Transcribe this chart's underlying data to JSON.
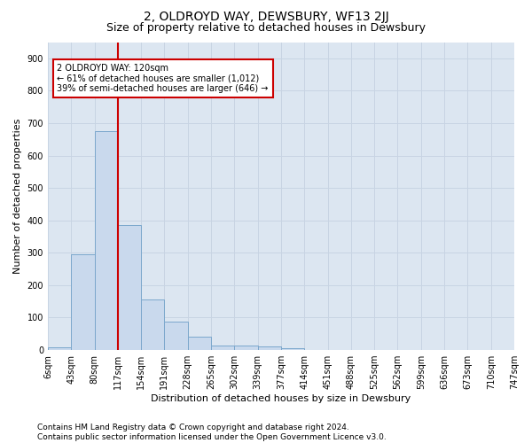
{
  "title": "2, OLDROYD WAY, DEWSBURY, WF13 2JJ",
  "subtitle": "Size of property relative to detached houses in Dewsbury",
  "xlabel": "Distribution of detached houses by size in Dewsbury",
  "ylabel": "Number of detached properties",
  "footer_line1": "Contains HM Land Registry data © Crown copyright and database right 2024.",
  "footer_line2": "Contains public sector information licensed under the Open Government Licence v3.0.",
  "bar_values": [
    8,
    295,
    675,
    385,
    155,
    87,
    42,
    14,
    13,
    10,
    7,
    0,
    0,
    0,
    0,
    0,
    0,
    0,
    0,
    0
  ],
  "bar_labels": [
    "6sqm",
    "43sqm",
    "80sqm",
    "117sqm",
    "154sqm",
    "191sqm",
    "228sqm",
    "265sqm",
    "302sqm",
    "339sqm",
    "377sqm",
    "414sqm",
    "451sqm",
    "488sqm",
    "525sqm",
    "562sqm",
    "599sqm",
    "636sqm",
    "673sqm",
    "710sqm",
    "747sqm"
  ],
  "bar_color": "#c9d9ed",
  "bar_edge_color": "#7ba7cc",
  "vline_color": "#cc0000",
  "annotation_text": "2 OLDROYD WAY: 120sqm\n← 61% of detached houses are smaller (1,012)\n39% of semi-detached houses are larger (646) →",
  "annotation_box_color": "#cc0000",
  "ylim": [
    0,
    950
  ],
  "yticks": [
    0,
    100,
    200,
    300,
    400,
    500,
    600,
    700,
    800,
    900
  ],
  "grid_color": "#c8d4e3",
  "plot_bg_color": "#dce6f1",
  "title_fontsize": 10,
  "subtitle_fontsize": 9,
  "label_fontsize": 8,
  "tick_fontsize": 7,
  "footer_fontsize": 6.5
}
